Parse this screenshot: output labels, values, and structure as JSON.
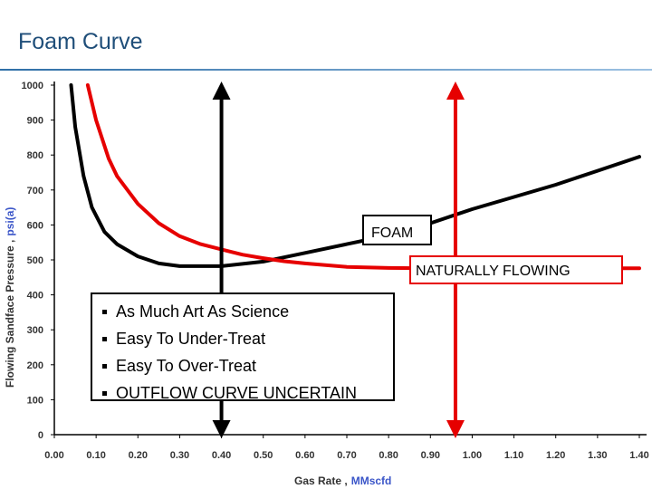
{
  "slide": {
    "title": "Foam Curve"
  },
  "chart_data": {
    "type": "line",
    "title": "",
    "xlabel": "Gas Rate ,",
    "xlabel_unit": "MMscfd",
    "ylabel": "Flowing Sandface Pressure ,",
    "ylabel_unit": "psi(a)",
    "xlim": [
      0,
      1.4
    ],
    "ylim": [
      0,
      1000
    ],
    "x_ticks": [
      "0.00",
      "0.10",
      "0.20",
      "0.30",
      "0.40",
      "0.50",
      "0.60",
      "0.70",
      "0.80",
      "0.90",
      "1.00",
      "1.10",
      "1.20",
      "1.30",
      "1.40"
    ],
    "y_ticks": [
      "0",
      "100",
      "200",
      "300",
      "400",
      "500",
      "600",
      "700",
      "800",
      "900",
      "1000"
    ],
    "grid": false,
    "series": [
      {
        "color": "#000000",
        "x": [
          0.04,
          0.05,
          0.07,
          0.09,
          0.12,
          0.15,
          0.2,
          0.25,
          0.3,
          0.4,
          0.5,
          0.6,
          0.7,
          0.8,
          0.9,
          1.0,
          1.1,
          1.2,
          1.3,
          1.4
        ],
        "y": [
          1000,
          880,
          740,
          650,
          580,
          545,
          510,
          490,
          482,
          482,
          495,
          520,
          545,
          570,
          605,
          645,
          680,
          715,
          755,
          795
        ]
      },
      {
        "color": "#e60000",
        "x": [
          0.08,
          0.1,
          0.13,
          0.15,
          0.2,
          0.25,
          0.3,
          0.35,
          0.4,
          0.45,
          0.5,
          0.55,
          0.6,
          0.7,
          0.8,
          0.9,
          1.0,
          1.1,
          1.2,
          1.3,
          1.4
        ],
        "y": [
          1000,
          900,
          790,
          740,
          660,
          605,
          568,
          545,
          530,
          515,
          505,
          496,
          490,
          480,
          477,
          476,
          476,
          476,
          476,
          476,
          476
        ]
      }
    ],
    "vertical_arrows": [
      {
        "x": 0.4,
        "y_from": 0,
        "y_to": 1000,
        "color": "#000000"
      },
      {
        "x": 0.96,
        "y_from": 0,
        "y_to": 1000,
        "color": "#e60000"
      }
    ],
    "annotations": [
      {
        "label": "FOAM",
        "border": "#000000"
      },
      {
        "label": "NATURALLY FLOWING",
        "border": "#e60000"
      }
    ]
  },
  "bullets": [
    "As Much Art As Science",
    "Easy To Under-Treat",
    "Easy To Over-Treat",
    "OUTFLOW CURVE UNCERTAIN"
  ]
}
